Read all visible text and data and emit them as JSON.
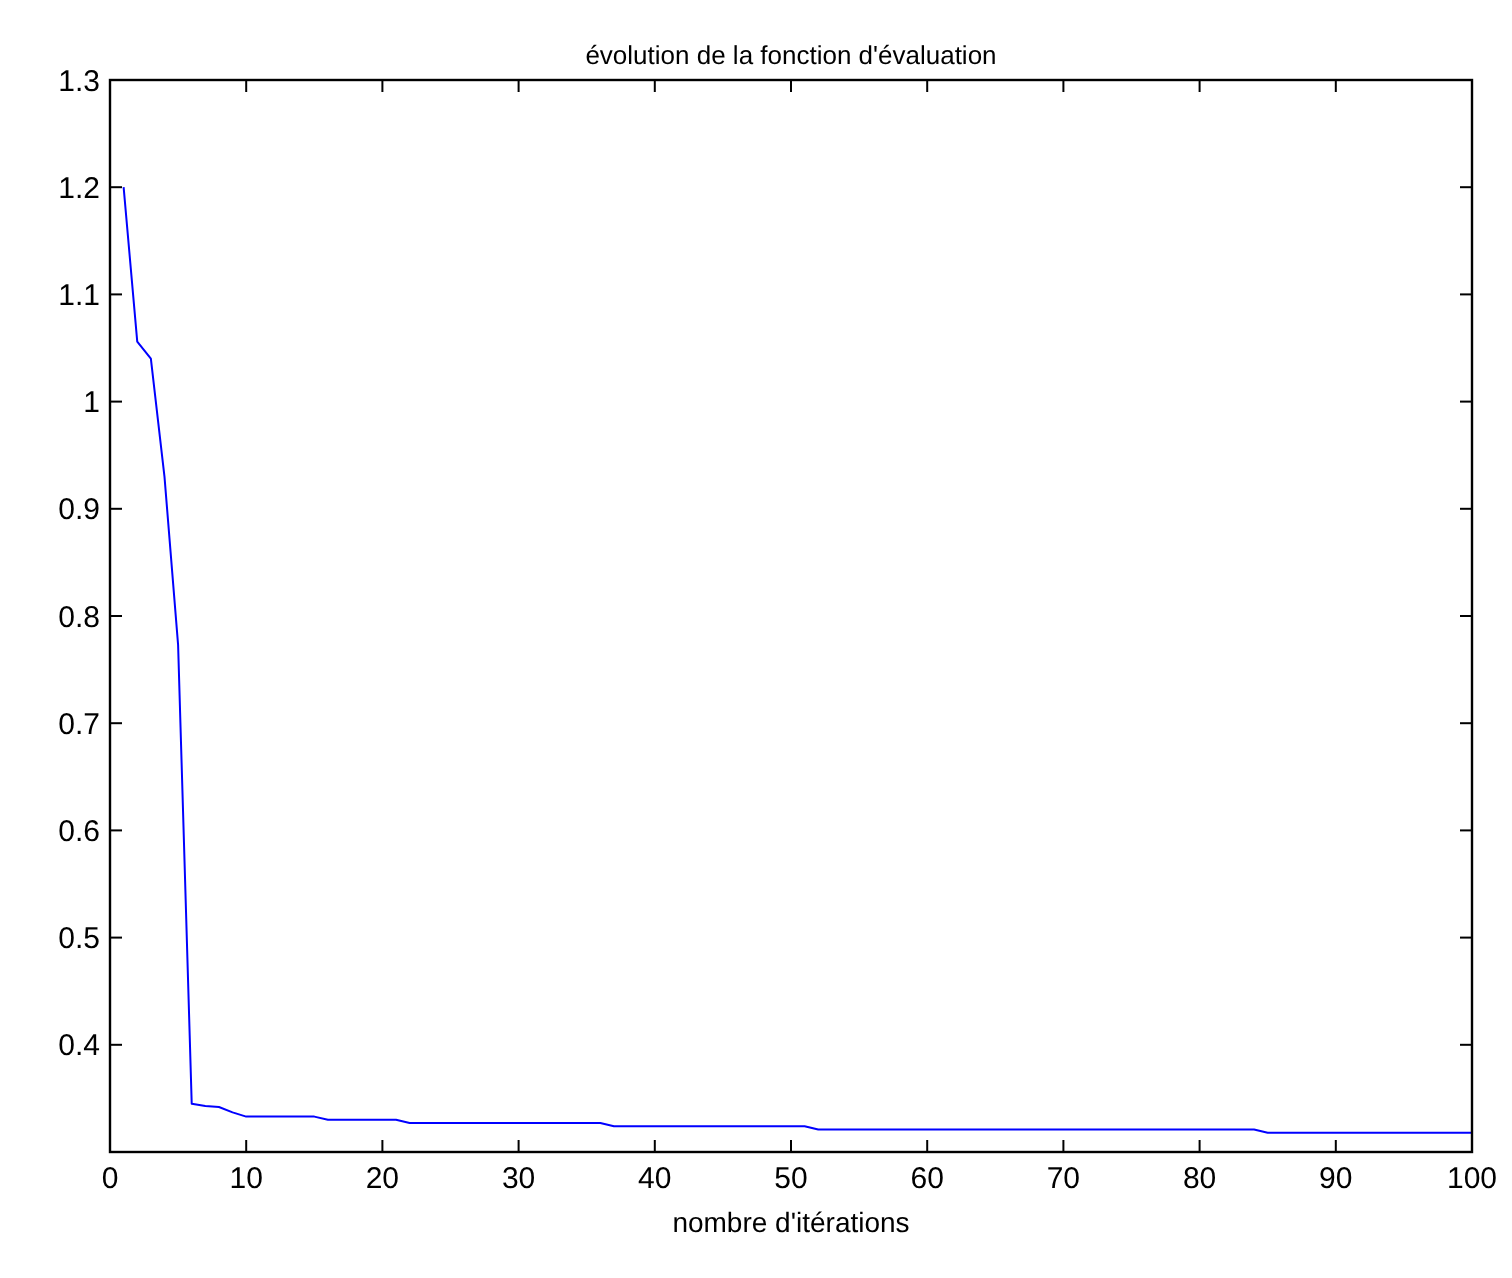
{
  "chart_data": {
    "type": "line",
    "title": "évolution de la fonction d'évaluation",
    "xlabel": "nombre d'itérations",
    "x": [
      1,
      2,
      3,
      4,
      5,
      6,
      7,
      8,
      9,
      10,
      15,
      16,
      21,
      22,
      36,
      37,
      51,
      52,
      84,
      85,
      100
    ],
    "series": [
      {
        "color": "#0000ff",
        "values": [
          1.2,
          1.056,
          1.04,
          0.93,
          0.773,
          0.345,
          0.343,
          0.342,
          0.337,
          0.333,
          0.333,
          0.33,
          0.33,
          0.327,
          0.327,
          0.324,
          0.324,
          0.321,
          0.321,
          0.318,
          0.318
        ]
      }
    ],
    "xlim": [
      0,
      100
    ],
    "xticks": [
      0,
      10,
      20,
      30,
      40,
      50,
      60,
      70,
      80,
      90,
      100
    ],
    "ylim": [
      0.3,
      1.3
    ],
    "yticks": [
      0.4,
      0.5,
      0.6,
      0.7,
      0.8,
      0.9,
      1,
      1.1,
      1.2,
      1.3
    ],
    "line_style": "solid"
  }
}
